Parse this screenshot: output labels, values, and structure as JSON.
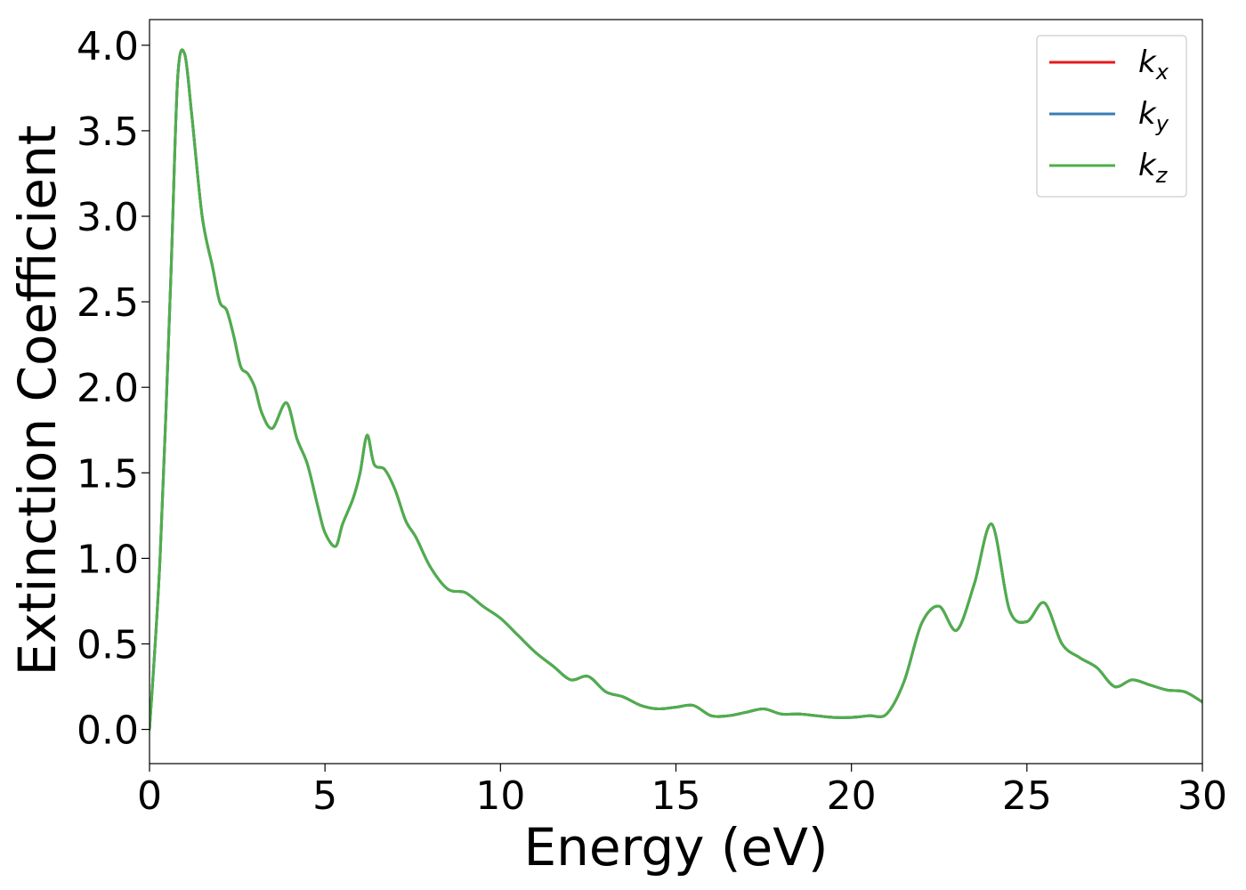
{
  "chart_data": {
    "type": "line",
    "xlabel": "Energy (eV)",
    "ylabel": "Extinction Coefficient",
    "xlim": [
      0,
      30
    ],
    "ylim": [
      -0.2,
      4.15
    ],
    "xticks": [
      0,
      5,
      10,
      15,
      20,
      25,
      30
    ],
    "xtick_labels": [
      "0",
      "5",
      "10",
      "15",
      "20",
      "25",
      "30"
    ],
    "yticks": [
      0.0,
      0.5,
      1.0,
      1.5,
      2.0,
      2.5,
      3.0,
      3.5,
      4.0
    ],
    "ytick_labels": [
      "0.0",
      "0.5",
      "1.0",
      "1.5",
      "2.0",
      "2.5",
      "3.0",
      "3.5",
      "4.0"
    ],
    "grid": false,
    "legend_position": "top-right",
    "x": [
      0,
      0.3,
      0.6,
      0.8,
      1.0,
      1.2,
      1.5,
      1.8,
      2.0,
      2.2,
      2.4,
      2.6,
      2.8,
      3.0,
      3.2,
      3.5,
      3.9,
      4.2,
      4.5,
      4.8,
      5.0,
      5.3,
      5.5,
      5.8,
      6.0,
      6.2,
      6.4,
      6.7,
      7.0,
      7.3,
      7.6,
      8.0,
      8.5,
      9.0,
      9.5,
      10.0,
      10.5,
      11.0,
      11.5,
      12.0,
      12.5,
      13.0,
      13.5,
      14.0,
      14.5,
      15.0,
      15.5,
      16.0,
      16.5,
      17.0,
      17.5,
      18.0,
      18.5,
      19.0,
      19.5,
      20.0,
      20.5,
      21.0,
      21.5,
      22.0,
      22.5,
      23.0,
      23.5,
      24.0,
      24.5,
      25.0,
      25.5,
      26.0,
      26.5,
      27.0,
      27.5,
      28.0,
      28.5,
      29.0,
      29.5,
      30.0
    ],
    "series": [
      {
        "name": "kx",
        "color": "#e41a1c",
        "values": [
          0.0,
          1.0,
          2.6,
          3.8,
          3.95,
          3.6,
          3.0,
          2.7,
          2.5,
          2.45,
          2.3,
          2.12,
          2.08,
          2.0,
          1.85,
          1.76,
          1.91,
          1.7,
          1.55,
          1.3,
          1.15,
          1.07,
          1.2,
          1.35,
          1.5,
          1.72,
          1.55,
          1.52,
          1.4,
          1.22,
          1.12,
          0.95,
          0.82,
          0.8,
          0.72,
          0.65,
          0.55,
          0.45,
          0.37,
          0.29,
          0.31,
          0.22,
          0.19,
          0.14,
          0.12,
          0.13,
          0.14,
          0.08,
          0.08,
          0.1,
          0.12,
          0.09,
          0.09,
          0.08,
          0.07,
          0.07,
          0.08,
          0.09,
          0.28,
          0.62,
          0.72,
          0.58,
          0.85,
          1.2,
          0.7,
          0.63,
          0.74,
          0.5,
          0.42,
          0.36,
          0.25,
          0.29,
          0.26,
          0.23,
          0.22,
          0.16
        ]
      },
      {
        "name": "ky",
        "color": "#377eb8",
        "values": [
          0.0,
          1.0,
          2.6,
          3.8,
          3.95,
          3.6,
          3.0,
          2.7,
          2.5,
          2.45,
          2.3,
          2.12,
          2.08,
          2.0,
          1.85,
          1.76,
          1.91,
          1.7,
          1.55,
          1.3,
          1.15,
          1.07,
          1.2,
          1.35,
          1.5,
          1.72,
          1.55,
          1.52,
          1.4,
          1.22,
          1.12,
          0.95,
          0.82,
          0.8,
          0.72,
          0.65,
          0.55,
          0.45,
          0.37,
          0.29,
          0.31,
          0.22,
          0.19,
          0.14,
          0.12,
          0.13,
          0.14,
          0.08,
          0.08,
          0.1,
          0.12,
          0.09,
          0.09,
          0.08,
          0.07,
          0.07,
          0.08,
          0.09,
          0.28,
          0.62,
          0.72,
          0.58,
          0.85,
          1.2,
          0.7,
          0.63,
          0.74,
          0.5,
          0.42,
          0.36,
          0.25,
          0.29,
          0.26,
          0.23,
          0.22,
          0.16
        ]
      },
      {
        "name": "kz",
        "color": "#4daf4a",
        "values": [
          0.0,
          1.0,
          2.6,
          3.8,
          3.95,
          3.6,
          3.0,
          2.7,
          2.5,
          2.45,
          2.3,
          2.12,
          2.08,
          2.0,
          1.85,
          1.76,
          1.91,
          1.7,
          1.55,
          1.3,
          1.15,
          1.07,
          1.2,
          1.35,
          1.5,
          1.72,
          1.55,
          1.52,
          1.4,
          1.22,
          1.12,
          0.95,
          0.82,
          0.8,
          0.72,
          0.65,
          0.55,
          0.45,
          0.37,
          0.29,
          0.31,
          0.22,
          0.19,
          0.14,
          0.12,
          0.13,
          0.14,
          0.08,
          0.08,
          0.1,
          0.12,
          0.09,
          0.09,
          0.08,
          0.07,
          0.07,
          0.08,
          0.09,
          0.28,
          0.62,
          0.72,
          0.58,
          0.85,
          1.2,
          0.7,
          0.63,
          0.74,
          0.5,
          0.42,
          0.36,
          0.25,
          0.29,
          0.26,
          0.23,
          0.22,
          0.16
        ]
      }
    ],
    "legend": [
      {
        "main": "k",
        "sub": "x",
        "color": "#e41a1c"
      },
      {
        "main": "k",
        "sub": "y",
        "color": "#377eb8"
      },
      {
        "main": "k",
        "sub": "z",
        "color": "#4daf4a"
      }
    ]
  }
}
